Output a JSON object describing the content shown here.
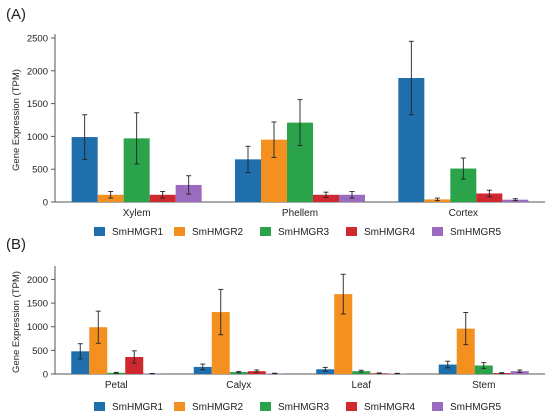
{
  "panel_labels": [
    "(A)",
    "(B)"
  ],
  "chart_data": [
    {
      "type": "bar",
      "panel": "(A)",
      "title": "",
      "xlabel": "",
      "ylabel": "Gene Expression (TPM)",
      "ylim": [
        0,
        2500
      ],
      "yticks": [
        0,
        500,
        1000,
        1500,
        2000,
        2500
      ],
      "categories": [
        "Xylem",
        "Phellem",
        "Cortex"
      ],
      "legend_position": "bottom",
      "series": [
        {
          "name": "SmHMGR1",
          "color": "#1f6fad",
          "values": [
            990,
            650,
            1890
          ],
          "errors": [
            340,
            200,
            560
          ]
        },
        {
          "name": "SmHMGR2",
          "color": "#f39020",
          "values": [
            110,
            950,
            40
          ],
          "errors": [
            50,
            270,
            20
          ]
        },
        {
          "name": "SmHMGR3",
          "color": "#2aa34a",
          "values": [
            970,
            1210,
            510
          ],
          "errors": [
            390,
            350,
            160
          ]
        },
        {
          "name": "SmHMGR4",
          "color": "#d0282f",
          "values": [
            110,
            110,
            130
          ],
          "errors": [
            50,
            40,
            50
          ]
        },
        {
          "name": "SmHMGR5",
          "color": "#9b6bbf",
          "values": [
            260,
            110,
            35
          ],
          "errors": [
            140,
            50,
            15
          ]
        }
      ]
    },
    {
      "type": "bar",
      "panel": "(B)",
      "title": "",
      "xlabel": "",
      "ylabel": "Gene Expression (TPM)",
      "ylim": [
        0,
        2200
      ],
      "yticks": [
        0,
        500,
        1000,
        1500,
        2000
      ],
      "categories": [
        "Petal",
        "Calyx",
        "Leaf",
        "Stem"
      ],
      "legend_position": "bottom",
      "series": [
        {
          "name": "SmHMGR1",
          "color": "#1f6fad",
          "values": [
            480,
            150,
            100,
            200
          ],
          "errors": [
            160,
            60,
            40,
            70
          ]
        },
        {
          "name": "SmHMGR2",
          "color": "#f39020",
          "values": [
            990,
            1310,
            1690,
            960
          ],
          "errors": [
            340,
            480,
            420,
            340
          ]
        },
        {
          "name": "SmHMGR3",
          "color": "#2aa34a",
          "values": [
            25,
            40,
            60,
            180
          ],
          "errors": [
            10,
            15,
            20,
            60
          ]
        },
        {
          "name": "SmHMGR4",
          "color": "#d0282f",
          "values": [
            360,
            60,
            15,
            20
          ],
          "errors": [
            130,
            25,
            8,
            8
          ]
        },
        {
          "name": "SmHMGR5",
          "color": "#9b6bbf",
          "values": [
            8,
            12,
            10,
            60
          ],
          "errors": [
            4,
            5,
            5,
            25
          ]
        }
      ]
    }
  ]
}
